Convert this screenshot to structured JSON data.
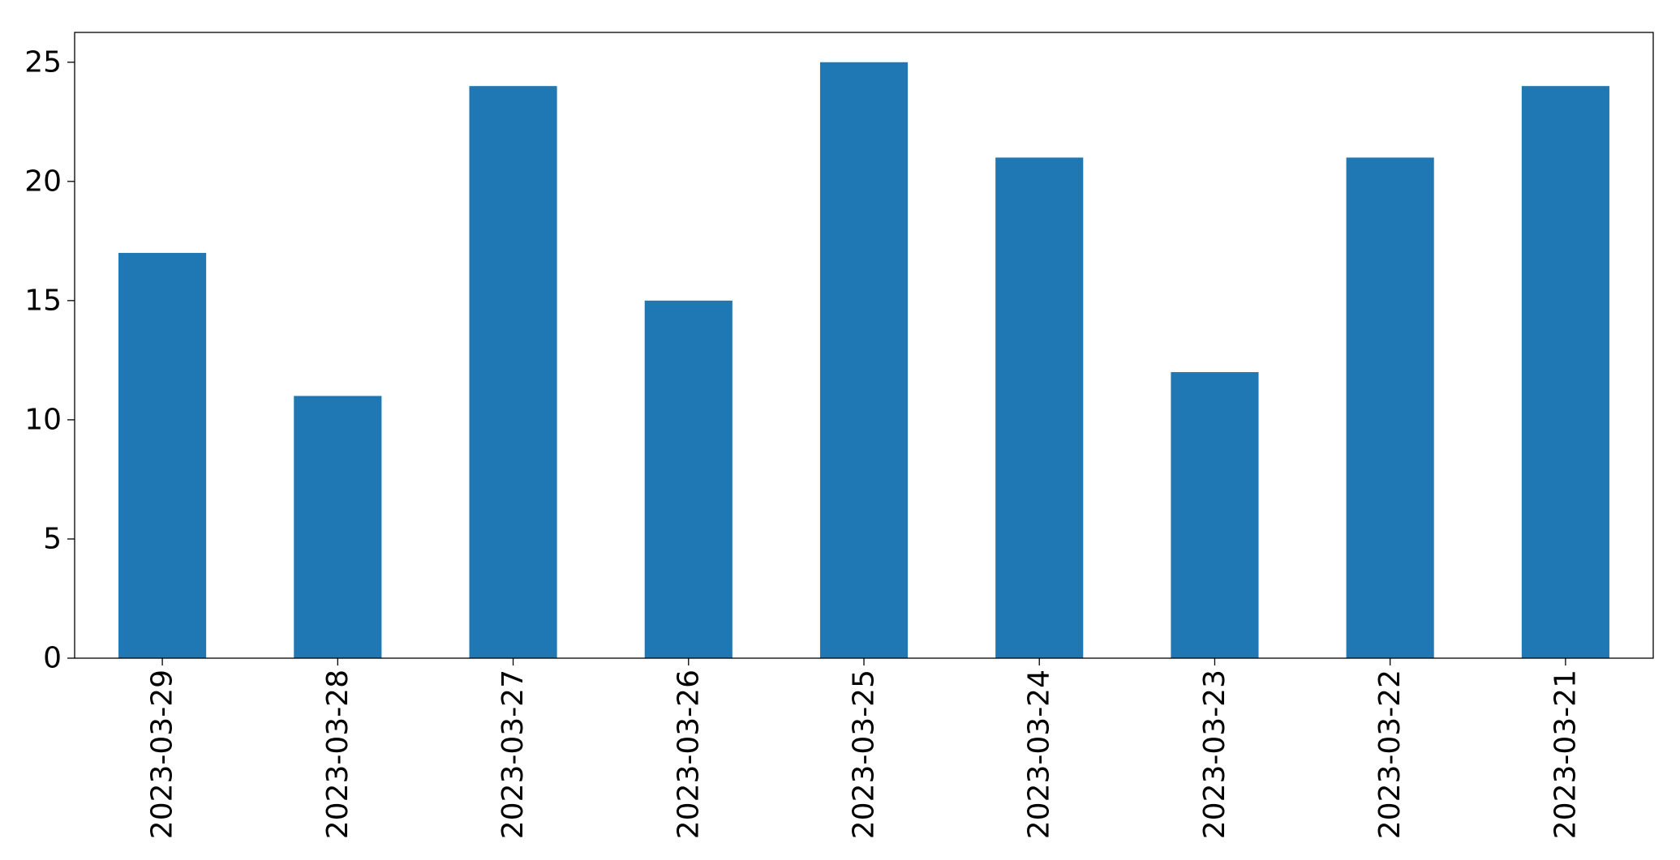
{
  "chart_data": {
    "type": "bar",
    "categories": [
      "2023-03-29",
      "2023-03-28",
      "2023-03-27",
      "2023-03-26",
      "2023-03-25",
      "2023-03-24",
      "2023-03-23",
      "2023-03-22",
      "2023-03-21"
    ],
    "values": [
      17,
      11,
      24,
      15,
      25,
      21,
      12,
      21,
      24
    ],
    "title": "",
    "xlabel": "",
    "ylabel": "",
    "ylim": [
      0,
      26.25
    ],
    "yticks": [
      0,
      5,
      10,
      15,
      20,
      25
    ],
    "x_tick_rotation": "vertical",
    "grid": false,
    "legend": "none",
    "bar_color": "#1f77b4"
  }
}
